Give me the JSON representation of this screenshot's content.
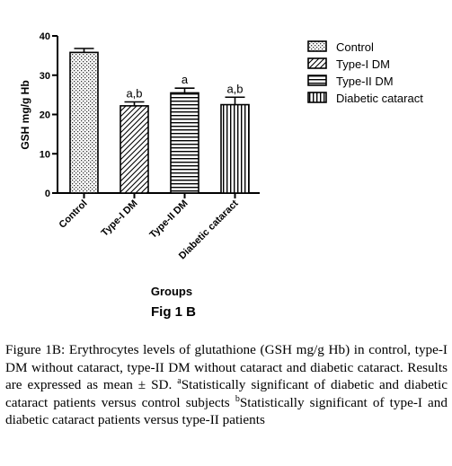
{
  "chart_data": {
    "type": "bar",
    "categories": [
      "Control",
      "Type-I DM",
      "Type-II DM",
      "Diabetic cataract"
    ],
    "values": [
      35.8,
      22.2,
      25.5,
      22.5
    ],
    "errors": [
      1.0,
      1.0,
      1.2,
      1.9
    ],
    "significance": [
      "",
      "a,b",
      "a",
      "a,b"
    ],
    "ylabel": "GSH mg/g Hb",
    "xlabel": "Groups",
    "ylim": [
      0,
      40
    ],
    "yticks": [
      0,
      10,
      20,
      30,
      40
    ],
    "legend": [
      "Control",
      "Type-I DM",
      "Type-II DM",
      "Diabetic cataract"
    ],
    "legend_position": "right",
    "grid": false
  },
  "figure_label": "Fig 1 B",
  "caption": {
    "prefix": "Figure 1B:",
    "text": " Erythrocytes levels of glutathione (GSH mg/g Hb) in control, type-I DM without cataract, type-II DM without cataract and diabetic cataract. Results are expressed as mean ± SD. ",
    "note_a_mark": "a",
    "note_a": "Statistically significant of diabetic and diabetic cataract patients versus control subjects ",
    "note_b_mark": "b",
    "note_b": "Statistically significant of type-I and diabetic cataract patients versus type-II patients"
  }
}
